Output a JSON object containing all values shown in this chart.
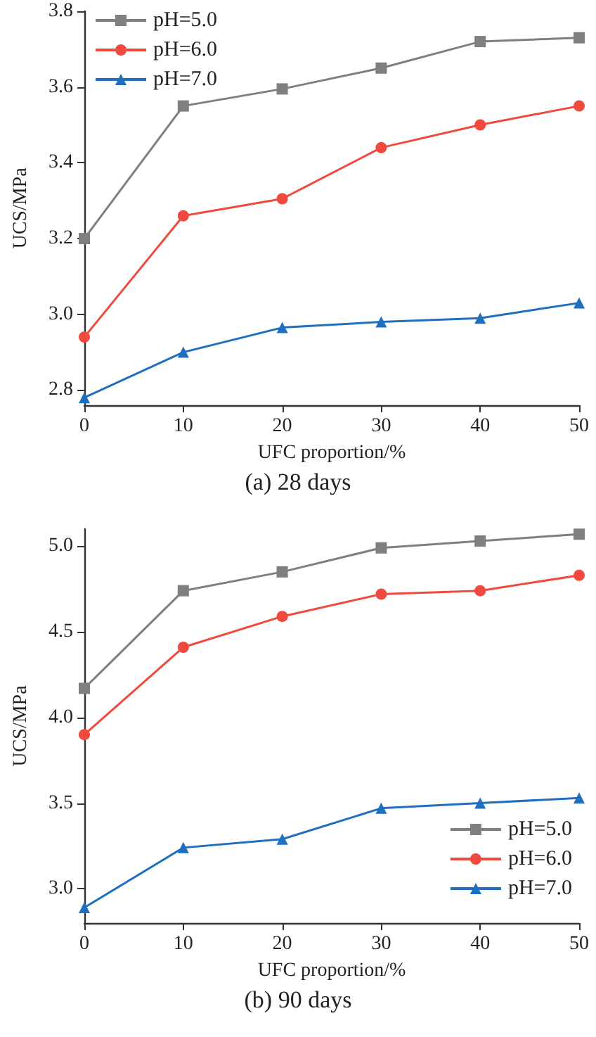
{
  "chart_data": [
    {
      "type": "line",
      "title": "(a) 28 days",
      "xlabel": "UFC proportion/%",
      "ylabel": "UCS/MPa",
      "x": [
        0,
        10,
        20,
        30,
        40,
        50
      ],
      "xlim": [
        0,
        50
      ],
      "xticks": [
        0,
        10,
        20,
        30,
        40,
        50
      ],
      "ylim": [
        2.76,
        3.8
      ],
      "yticks": [
        2.8,
        {
          "value": 3.0,
          "label": "3.0"
        },
        3.2,
        3.4,
        3.6,
        3.8
      ],
      "grid": false,
      "legend": "top left",
      "line_style": "solid",
      "series": [
        {
          "name": "pH=5.0",
          "color": "#7f7f7f",
          "marker": "square",
          "values": [
            3.2,
            3.55,
            3.595,
            3.65,
            3.72,
            3.73
          ]
        },
        {
          "name": "pH=6.0",
          "color": "#f04a3e",
          "marker": "circle",
          "values": [
            2.94,
            3.26,
            3.305,
            3.44,
            3.5,
            3.55
          ]
        },
        {
          "name": "pH=7.0",
          "color": "#1f6fbf",
          "marker": "triangle",
          "values": [
            2.78,
            2.9,
            2.965,
            2.98,
            2.99,
            3.03
          ]
        }
      ]
    },
    {
      "type": "line",
      "title": "(b) 90 days",
      "xlabel": "UFC proportion/%",
      "ylabel": "UCS/MPa",
      "x": [
        0,
        10,
        20,
        30,
        40,
        50
      ],
      "xlim": [
        0,
        50
      ],
      "xticks": [
        0,
        10,
        20,
        30,
        40,
        50
      ],
      "ylim": [
        2.8,
        5.1
      ],
      "yticks": [
        {
          "value": 3.0,
          "label": "3.0"
        },
        {
          "value": 3.5,
          "label": "3.5"
        },
        {
          "value": 4.0,
          "label": "4.0"
        },
        {
          "value": 4.5,
          "label": "4.5"
        },
        {
          "value": 5.0,
          "label": "5.0"
        }
      ],
      "grid": false,
      "legend": "bottom right",
      "line_style": "solid",
      "series": [
        {
          "name": "pH=5.0",
          "color": "#7f7f7f",
          "marker": "square",
          "values": [
            4.17,
            4.74,
            4.85,
            4.99,
            5.03,
            5.07
          ]
        },
        {
          "name": "pH=6.0",
          "color": "#f04a3e",
          "marker": "circle",
          "values": [
            3.9,
            4.41,
            4.59,
            4.72,
            4.74,
            4.83
          ]
        },
        {
          "name": "pH=7.0",
          "color": "#1f6fbf",
          "marker": "triangle",
          "values": [
            2.89,
            3.24,
            3.29,
            3.47,
            3.5,
            3.53
          ]
        }
      ]
    }
  ]
}
